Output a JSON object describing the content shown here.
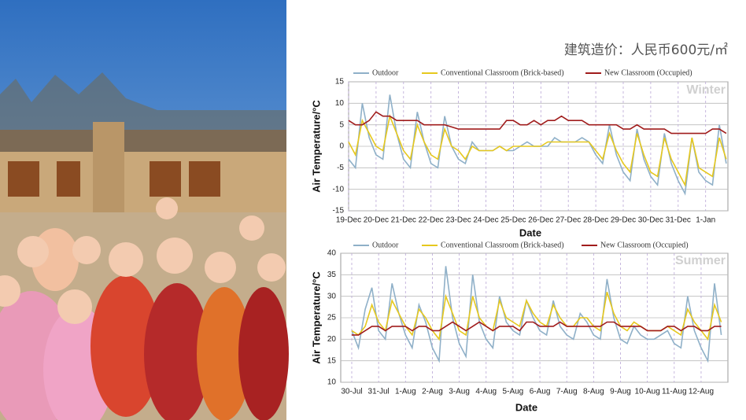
{
  "caption": "建筑造价：人民币600元/㎡",
  "chart_data": [
    {
      "type": "line",
      "annotation": "Winter",
      "xlabel": "Date",
      "ylabel": "Air Temperature/°C",
      "categories": [
        "19-Dec",
        null,
        null,
        null,
        "20-Dec",
        null,
        null,
        null,
        "21-Dec",
        null,
        null,
        null,
        "22-Dec",
        null,
        null,
        null,
        "23-Dec",
        null,
        null,
        null,
        "24-Dec",
        null,
        null,
        null,
        "25-Dec",
        null,
        null,
        null,
        "26-Dec",
        null,
        null,
        null,
        "27-Dec",
        null,
        null,
        null,
        "28-Dec",
        null,
        null,
        null,
        "29-Dec",
        null,
        null,
        null,
        "30-Dec",
        null,
        null,
        null,
        "31-Dec",
        null,
        null,
        null,
        "1-Jan",
        null,
        null,
        null
      ],
      "ylim": [
        -15,
        15
      ],
      "yticks": [
        -15,
        -10,
        -5,
        0,
        5,
        10,
        15
      ],
      "grid": true,
      "series": [
        {
          "name": "Outdoor",
          "color": "#8fb0c8",
          "values": [
            -3,
            -5,
            10,
            2,
            -2,
            -3,
            12,
            3,
            -3,
            -5,
            8,
            1,
            -4,
            -5,
            7,
            0,
            -3,
            -4,
            1,
            -1,
            -1,
            -1,
            0,
            -1,
            -1,
            0,
            1,
            0,
            0,
            0,
            2,
            1,
            1,
            1,
            2,
            1,
            -2,
            -4,
            5,
            -2,
            -6,
            -8,
            4,
            -3,
            -7,
            -9,
            3,
            -4,
            -8,
            -11,
            2,
            -6,
            -8,
            -9,
            5,
            -4
          ]
        },
        {
          "name": "Conventional Classroom (Brick-based)",
          "color": "#e6c81e",
          "values": [
            1,
            -2,
            6,
            3,
            0,
            -1,
            7,
            3,
            -1,
            -3,
            5,
            1,
            -2,
            -3,
            4,
            0,
            -1,
            -3,
            0,
            -1,
            -1,
            -1,
            0,
            -1,
            0,
            0,
            0,
            0,
            0,
            1,
            1,
            1,
            1,
            1,
            1,
            1,
            -1,
            -3,
            3,
            -1,
            -4,
            -6,
            3,
            -2,
            -6,
            -7,
            2,
            -3,
            -6,
            -9,
            2,
            -5,
            -6,
            -7,
            2,
            -3
          ]
        },
        {
          "name": "New Classroom (Occupied)",
          "color": "#a01c1c",
          "values": [
            6,
            5,
            5,
            6,
            8,
            7,
            7,
            6,
            6,
            6,
            6,
            5,
            5,
            5,
            5,
            4.5,
            4,
            4,
            4,
            4,
            4,
            4,
            4,
            6,
            6,
            5,
            5,
            6,
            5,
            6,
            6,
            7,
            6,
            6,
            6,
            5,
            5,
            5,
            5,
            5,
            4,
            4,
            5,
            4,
            4,
            4,
            4,
            3,
            3,
            3,
            3,
            3,
            3,
            4,
            4,
            3
          ]
        }
      ]
    },
    {
      "type": "line",
      "annotation": "Summer",
      "xlabel": "Date",
      "ylabel": "Air Temperature/°C",
      "categories": [
        "30-Jul",
        null,
        null,
        null,
        "31-Jul",
        null,
        null,
        null,
        "1-Aug",
        null,
        null,
        null,
        "2-Aug",
        null,
        null,
        null,
        "3-Aug",
        null,
        null,
        null,
        "4-Aug",
        null,
        null,
        null,
        "5-Aug",
        null,
        null,
        null,
        "6-Aug",
        null,
        null,
        null,
        "7-Aug",
        null,
        null,
        null,
        "8-Aug",
        null,
        null,
        null,
        "9-Aug",
        null,
        null,
        null,
        "10-Aug",
        null,
        null,
        null,
        "11-Aug",
        null,
        null,
        null,
        "12-Aug",
        null,
        null,
        null
      ],
      "ylim": [
        10,
        40
      ],
      "yticks": [
        10,
        15,
        20,
        25,
        30,
        35,
        40
      ],
      "grid": true,
      "series": [
        {
          "name": "Outdoor",
          "color": "#8fb0c8",
          "values": [
            22,
            18,
            27,
            32,
            22,
            20,
            33,
            26,
            21,
            18,
            28,
            24,
            18,
            15,
            37,
            25,
            19,
            16,
            35,
            24,
            20,
            18,
            30,
            24,
            22,
            21,
            29,
            25,
            22,
            21,
            29,
            23,
            21,
            20,
            26,
            24,
            21,
            20,
            34,
            25,
            20,
            19,
            23,
            21,
            20,
            20,
            21,
            22,
            19,
            18,
            30,
            22,
            18,
            15,
            33,
            21
          ]
        },
        {
          "name": "Conventional Classroom (Brick-based)",
          "color": "#e6c81e",
          "values": [
            22,
            21,
            23,
            28,
            24,
            22,
            29,
            26,
            23,
            21,
            27,
            25,
            22,
            20,
            30,
            26,
            22,
            21,
            30,
            25,
            23,
            22,
            29,
            25,
            24,
            23,
            29,
            26,
            24,
            23,
            28,
            25,
            23,
            23,
            25,
            25,
            23,
            22,
            31,
            26,
            23,
            22,
            24,
            23,
            22,
            22,
            22,
            23,
            22,
            21,
            27,
            24,
            22,
            20,
            28,
            24
          ]
        },
        {
          "name": "New Classroom (Occupied)",
          "color": "#a01c1c",
          "values": [
            21,
            21,
            22,
            23,
            23,
            22,
            23,
            23,
            23,
            22,
            23,
            23,
            22,
            22,
            23,
            24,
            23,
            22,
            23,
            24,
            23,
            22,
            23,
            23,
            23,
            22,
            24,
            24,
            23,
            23,
            23,
            24,
            23,
            23,
            23,
            23,
            23,
            23,
            24,
            24,
            23,
            23,
            23,
            23,
            22,
            22,
            22,
            23,
            23,
            22,
            23,
            23,
            22,
            22,
            23,
            23
          ]
        }
      ]
    }
  ]
}
